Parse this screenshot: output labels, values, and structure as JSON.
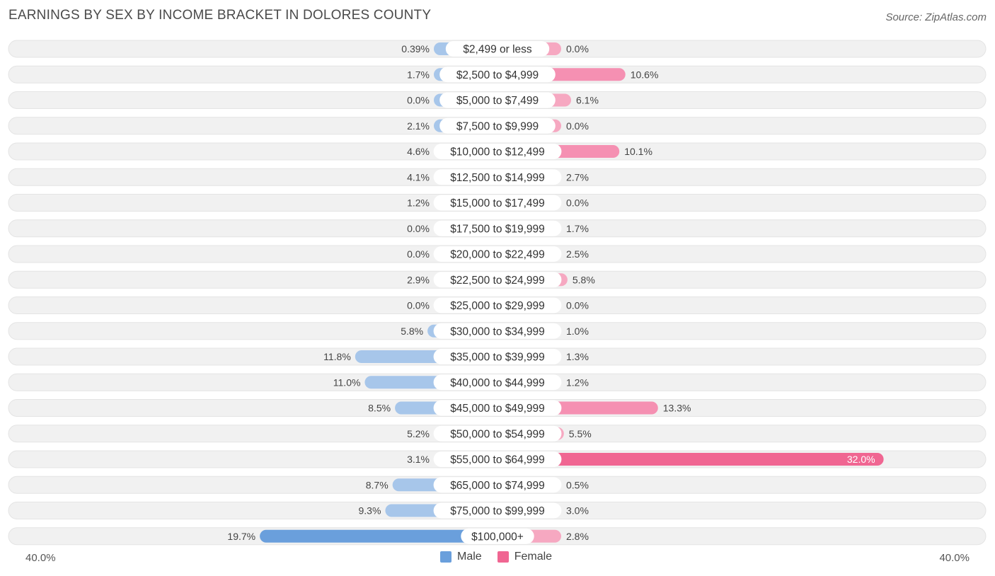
{
  "header": {
    "title": "EARNINGS BY SEX BY INCOME BRACKET IN DOLORES COUNTY",
    "source": "Source: ZipAtlas.com"
  },
  "axis": {
    "left_label": "40.0%",
    "right_label": "40.0%"
  },
  "legend": {
    "male_label": "Male",
    "female_label": "Female"
  },
  "colors": {
    "male": "#a7c6ea",
    "male_strong": "#6a9fdc",
    "female": "#f6a8c1",
    "female_strong": "#f06692",
    "row_bg": "#f1f1f1"
  },
  "chart_data": {
    "type": "bar",
    "orientation": "diverging-horizontal",
    "title": "EARNINGS BY SEX BY INCOME BRACKET IN DOLORES COUNTY",
    "categories": [
      "$2,499 or less",
      "$2,500 to $4,999",
      "$5,000 to $7,499",
      "$7,500 to $9,999",
      "$10,000 to $12,499",
      "$12,500 to $14,999",
      "$15,000 to $17,499",
      "$17,500 to $19,999",
      "$20,000 to $22,499",
      "$22,500 to $24,999",
      "$25,000 to $29,999",
      "$30,000 to $34,999",
      "$35,000 to $39,999",
      "$40,000 to $44,999",
      "$45,000 to $49,999",
      "$50,000 to $54,999",
      "$55,000 to $64,999",
      "$65,000 to $74,999",
      "$75,000 to $99,999",
      "$100,000+"
    ],
    "series": [
      {
        "name": "Male",
        "values": [
          0.39,
          1.7,
          0.0,
          2.1,
          4.6,
          4.1,
          1.2,
          0.0,
          0.0,
          2.9,
          0.0,
          5.8,
          11.8,
          11.0,
          8.5,
          5.2,
          3.1,
          8.7,
          9.3,
          19.7
        ]
      },
      {
        "name": "Female",
        "values": [
          0.0,
          10.6,
          6.1,
          0.0,
          10.1,
          2.7,
          0.0,
          1.7,
          2.5,
          5.8,
          0.0,
          1.0,
          1.3,
          1.2,
          13.3,
          5.5,
          32.0,
          0.5,
          3.0,
          2.8
        ]
      }
    ],
    "male_labels": [
      "0.39%",
      "1.7%",
      "0.0%",
      "2.1%",
      "4.6%",
      "4.1%",
      "1.2%",
      "0.0%",
      "0.0%",
      "2.9%",
      "0.0%",
      "5.8%",
      "11.8%",
      "11.0%",
      "8.5%",
      "5.2%",
      "3.1%",
      "8.7%",
      "9.3%",
      "19.7%"
    ],
    "female_labels": [
      "0.0%",
      "10.6%",
      "6.1%",
      "0.0%",
      "10.1%",
      "2.7%",
      "0.0%",
      "1.7%",
      "2.5%",
      "5.8%",
      "0.0%",
      "1.0%",
      "1.3%",
      "1.2%",
      "13.3%",
      "5.5%",
      "32.0%",
      "0.5%",
      "3.0%",
      "2.8%"
    ],
    "xlim": [
      -40,
      40
    ],
    "x_tick_labels": [
      "40.0%",
      "40.0%"
    ],
    "legend_position": "bottom-center"
  }
}
